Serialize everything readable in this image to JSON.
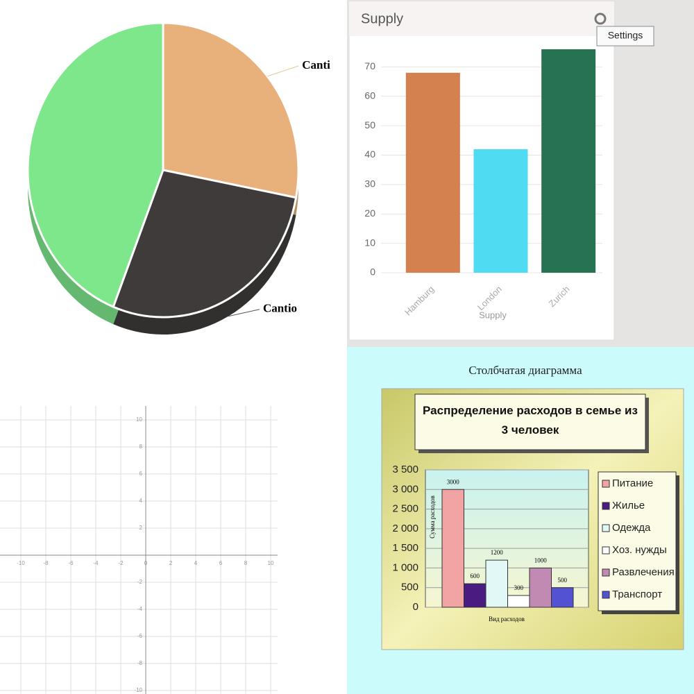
{
  "chart_data": [
    {
      "type": "pie",
      "labels": [
        "Canti",
        "Cantio",
        null
      ],
      "values": [
        28,
        28,
        44
      ],
      "colors": [
        "#e8b07a",
        "#3f3b3b",
        "#7ee68b"
      ]
    },
    {
      "type": "bar",
      "title": "Supply",
      "tooltip": "Settings",
      "x_label": "Supply",
      "categories": [
        "Hamburg",
        "London",
        "Zurich"
      ],
      "values": [
        68,
        42,
        76
      ],
      "colors": [
        "#d4804f",
        "#4fdcf2",
        "#267252"
      ],
      "ylim": [
        0,
        80
      ],
      "yticks": [
        0,
        10,
        20,
        30,
        40,
        50,
        60,
        70
      ],
      "grid": true
    },
    {
      "type": "scatter",
      "x": [],
      "values": [],
      "xlim": [
        -10,
        10
      ],
      "ylim": [
        -10,
        10
      ],
      "xticks": [
        -10,
        -8,
        -6,
        -4,
        -2,
        0,
        2,
        4,
        6,
        8,
        10
      ],
      "yticks": [
        -10,
        -8,
        -6,
        -4,
        -2,
        2,
        4,
        6,
        8,
        10
      ],
      "grid": true
    },
    {
      "type": "bar",
      "page_title": "Столбчатая диаграмма",
      "title": "Распределение расходов в семье из 3 человек",
      "x_label": "Вид расходов",
      "y_label": "Сумма расходов",
      "categories": [
        "Питание",
        "Жилье",
        "Одежда",
        "Хоз. нужды",
        "Развлечения",
        "Транспорт"
      ],
      "values": [
        3000,
        600,
        1200,
        300,
        1000,
        500
      ],
      "colors": [
        "#f2a3a3",
        "#4a1c82",
        "#e2f8f6",
        "#ffffff",
        "#c08ab2",
        "#5252d2"
      ],
      "ylim": [
        0,
        3500
      ],
      "yticks": [
        0,
        500,
        {
          "value": 1000,
          "label": "1 000"
        },
        {
          "value": 1500,
          "label": "1 500"
        },
        {
          "value": 2000,
          "label": "2 000"
        },
        {
          "value": 2500,
          "label": "2 500"
        },
        {
          "value": 3000,
          "label": "3 000"
        },
        {
          "value": 3500,
          "label": "3 500"
        }
      ],
      "grid": true,
      "legend": "right"
    }
  ]
}
